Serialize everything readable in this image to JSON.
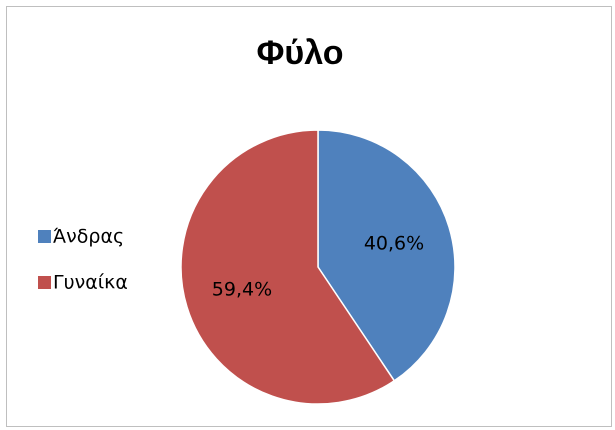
{
  "chart_data": {
    "type": "pie",
    "title": "Φύλο",
    "categories": [
      "Άνδρας",
      "Γυναίκα"
    ],
    "values": [
      40.6,
      59.4
    ],
    "value_labels": [
      "40,6%",
      "59,4%"
    ],
    "colors": [
      "#4f81bd",
      "#c0504d"
    ],
    "legend": "left"
  }
}
